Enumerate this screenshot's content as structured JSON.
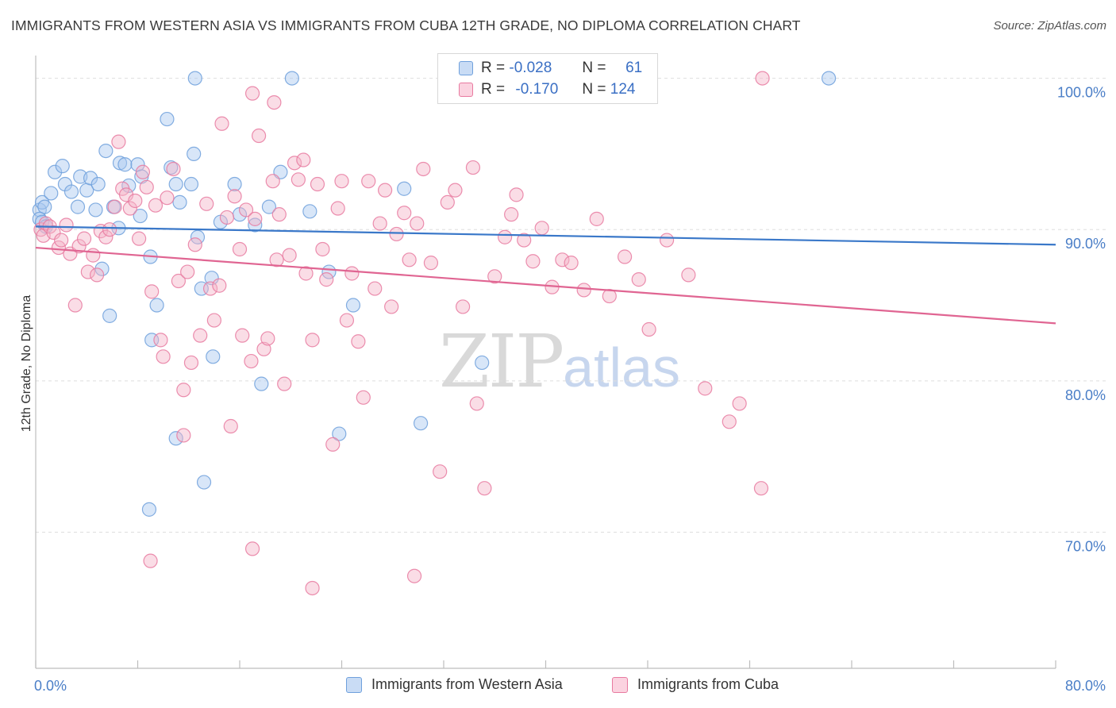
{
  "title": "IMMIGRANTS FROM WESTERN ASIA VS IMMIGRANTS FROM CUBA 12TH GRADE, NO DIPLOMA CORRELATION CHART",
  "source": "Source: ZipAtlas.com",
  "watermark": {
    "zip": "ZIP",
    "atlas": "atlas"
  },
  "legend": {
    "rows": [
      {
        "r_label": "R =",
        "r_value": "-0.028",
        "n_label": "N =",
        "n_value": "61",
        "color": "#a8c8f0"
      },
      {
        "r_label": "R =",
        "r_value": "-0.170",
        "n_label": "N =",
        "n_value": "124",
        "color": "#f5b3c8"
      }
    ]
  },
  "bottom_legend": [
    {
      "label": "Immigrants from Western Asia",
      "color": "#a8c8f0"
    },
    {
      "label": "Immigrants from Cuba",
      "color": "#f5b3c8"
    }
  ],
  "chart_data": {
    "type": "scatter",
    "title": "IMMIGRANTS FROM WESTERN ASIA VS IMMIGRANTS FROM CUBA 12TH GRADE, NO DIPLOMA CORRELATION CHART",
    "xlabel": "",
    "ylabel": "12th Grade, No Diploma",
    "xlim": [
      0,
      80
    ],
    "ylim": [
      61,
      101.5
    ],
    "x_tick_labels": [
      "0.0%",
      "80.0%"
    ],
    "y_ticks": [
      70,
      80,
      90,
      100
    ],
    "y_tick_labels": [
      "70.0%",
      "80.0%",
      "90.0%",
      "100.0%"
    ],
    "grid": true,
    "series": [
      {
        "name": "Immigrants from Western Asia",
        "color": "#6fa0dc",
        "fill": "#a8c8f0",
        "trend": {
          "x": [
            0,
            80
          ],
          "y": [
            90.2,
            89.0
          ]
        },
        "points": [
          [
            0.3,
            91.3
          ],
          [
            0.5,
            91.8
          ],
          [
            0.7,
            91.5
          ],
          [
            0.3,
            90.7
          ],
          [
            0.5,
            90.5
          ],
          [
            0.8,
            90.2
          ],
          [
            1.2,
            92.4
          ],
          [
            1.5,
            93.8
          ],
          [
            2.1,
            94.2
          ],
          [
            2.3,
            93.0
          ],
          [
            2.8,
            92.5
          ],
          [
            3.3,
            91.5
          ],
          [
            3.5,
            93.5
          ],
          [
            4.0,
            92.6
          ],
          [
            4.3,
            93.4
          ],
          [
            4.9,
            93.0
          ],
          [
            4.7,
            91.3
          ],
          [
            5.5,
            95.2
          ],
          [
            6.1,
            91.5
          ],
          [
            6.6,
            94.4
          ],
          [
            7.0,
            94.3
          ],
          [
            7.3,
            92.9
          ],
          [
            8.0,
            94.3
          ],
          [
            8.3,
            93.5
          ],
          [
            8.2,
            90.9
          ],
          [
            9.0,
            88.2
          ],
          [
            9.5,
            85.0
          ],
          [
            10.3,
            97.3
          ],
          [
            10.6,
            94.1
          ],
          [
            11.0,
            93.0
          ],
          [
            11.3,
            91.8
          ],
          [
            12.2,
            93.0
          ],
          [
            12.4,
            95.0
          ],
          [
            12.7,
            89.5
          ],
          [
            13.0,
            86.1
          ],
          [
            13.8,
            86.8
          ],
          [
            14.5,
            90.5
          ],
          [
            15.6,
            93.0
          ],
          [
            16.0,
            91.0
          ],
          [
            17.2,
            90.3
          ],
          [
            18.3,
            91.5
          ],
          [
            19.2,
            93.8
          ],
          [
            20.1,
            100.0
          ],
          [
            21.5,
            91.2
          ],
          [
            23.0,
            87.2
          ],
          [
            24.9,
            85.0
          ],
          [
            28.9,
            92.7
          ],
          [
            30.2,
            77.2
          ],
          [
            35.0,
            81.2
          ],
          [
            5.2,
            87.4
          ],
          [
            5.8,
            84.3
          ],
          [
            9.1,
            82.7
          ],
          [
            11.0,
            76.2
          ],
          [
            13.9,
            81.6
          ],
          [
            17.7,
            79.8
          ],
          [
            13.2,
            73.3
          ],
          [
            8.9,
            71.5
          ],
          [
            12.5,
            100.0
          ],
          [
            42.0,
            100.0
          ],
          [
            62.2,
            100.0
          ],
          [
            23.8,
            76.5
          ],
          [
            6.5,
            90.1
          ]
        ]
      },
      {
        "name": "Immigrants from Cuba",
        "color": "#e87aa0",
        "fill": "#f5b3c8",
        "trend": {
          "x": [
            0,
            80
          ],
          "y": [
            88.8,
            83.8
          ]
        },
        "points": [
          [
            0.4,
            90.0
          ],
          [
            0.6,
            89.6
          ],
          [
            0.8,
            90.4
          ],
          [
            1.1,
            90.2
          ],
          [
            1.4,
            89.8
          ],
          [
            1.8,
            88.8
          ],
          [
            2.0,
            89.3
          ],
          [
            2.4,
            90.3
          ],
          [
            2.7,
            88.4
          ],
          [
            3.1,
            85.0
          ],
          [
            3.4,
            88.9
          ],
          [
            3.8,
            89.4
          ],
          [
            4.1,
            87.2
          ],
          [
            4.5,
            88.3
          ],
          [
            4.8,
            87.0
          ],
          [
            5.1,
            89.9
          ],
          [
            5.5,
            89.5
          ],
          [
            5.8,
            90.0
          ],
          [
            6.2,
            91.5
          ],
          [
            6.5,
            95.8
          ],
          [
            6.8,
            92.7
          ],
          [
            7.1,
            92.3
          ],
          [
            7.4,
            91.4
          ],
          [
            7.8,
            91.9
          ],
          [
            8.1,
            89.4
          ],
          [
            8.4,
            93.8
          ],
          [
            8.7,
            92.8
          ],
          [
            9.1,
            85.9
          ],
          [
            9.4,
            91.6
          ],
          [
            9.8,
            82.7
          ],
          [
            10.0,
            81.6
          ],
          [
            10.3,
            92.1
          ],
          [
            10.8,
            94.0
          ],
          [
            11.2,
            86.6
          ],
          [
            11.6,
            79.4
          ],
          [
            11.9,
            87.2
          ],
          [
            12.2,
            81.2
          ],
          [
            12.5,
            89.0
          ],
          [
            12.9,
            83.0
          ],
          [
            13.4,
            91.7
          ],
          [
            13.7,
            86.1
          ],
          [
            14.0,
            84.0
          ],
          [
            14.4,
            86.3
          ],
          [
            14.6,
            97.0
          ],
          [
            15.0,
            90.8
          ],
          [
            15.3,
            77.0
          ],
          [
            15.6,
            92.2
          ],
          [
            16.0,
            88.7
          ],
          [
            16.2,
            83.0
          ],
          [
            16.5,
            91.3
          ],
          [
            16.9,
            81.3
          ],
          [
            17.2,
            90.7
          ],
          [
            17.5,
            96.2
          ],
          [
            17.9,
            82.1
          ],
          [
            18.2,
            82.8
          ],
          [
            18.6,
            93.2
          ],
          [
            18.9,
            88.0
          ],
          [
            19.1,
            91.0
          ],
          [
            19.5,
            79.8
          ],
          [
            19.9,
            88.3
          ],
          [
            20.3,
            94.4
          ],
          [
            20.6,
            93.3
          ],
          [
            21.0,
            94.6
          ],
          [
            21.2,
            87.1
          ],
          [
            21.7,
            82.7
          ],
          [
            22.1,
            93.0
          ],
          [
            22.5,
            88.7
          ],
          [
            22.8,
            86.7
          ],
          [
            23.3,
            75.8
          ],
          [
            23.7,
            91.4
          ],
          [
            24.0,
            93.2
          ],
          [
            24.4,
            84.0
          ],
          [
            24.8,
            87.1
          ],
          [
            25.3,
            82.6
          ],
          [
            25.7,
            78.9
          ],
          [
            26.1,
            93.2
          ],
          [
            26.6,
            86.1
          ],
          [
            27.0,
            90.4
          ],
          [
            27.4,
            92.6
          ],
          [
            27.9,
            84.9
          ],
          [
            28.3,
            89.7
          ],
          [
            28.9,
            91.1
          ],
          [
            29.3,
            88.0
          ],
          [
            29.9,
            90.4
          ],
          [
            30.4,
            94.0
          ],
          [
            31.0,
            87.8
          ],
          [
            31.7,
            74.0
          ],
          [
            32.3,
            91.8
          ],
          [
            32.9,
            92.6
          ],
          [
            33.5,
            84.9
          ],
          [
            34.3,
            94.1
          ],
          [
            35.2,
            72.9
          ],
          [
            36.0,
            86.9
          ],
          [
            36.8,
            89.5
          ],
          [
            37.3,
            91.0
          ],
          [
            37.7,
            92.3
          ],
          [
            38.3,
            89.3
          ],
          [
            39.0,
            87.9
          ],
          [
            39.7,
            90.1
          ],
          [
            40.5,
            86.2
          ],
          [
            41.3,
            88.0
          ],
          [
            42.0,
            87.8
          ],
          [
            43.0,
            86.0
          ],
          [
            44.0,
            90.7
          ],
          [
            45.0,
            85.6
          ],
          [
            46.2,
            88.2
          ],
          [
            47.3,
            86.7
          ],
          [
            48.1,
            83.4
          ],
          [
            49.5,
            89.3
          ],
          [
            51.2,
            87.0
          ],
          [
            52.5,
            79.5
          ],
          [
            54.4,
            77.3
          ],
          [
            55.2,
            78.5
          ],
          [
            56.9,
            72.9
          ],
          [
            34.6,
            78.5
          ],
          [
            29.7,
            67.1
          ],
          [
            17.0,
            68.9
          ],
          [
            9.0,
            68.1
          ],
          [
            21.7,
            66.3
          ],
          [
            57.0,
            100.0
          ],
          [
            17.0,
            99.0
          ],
          [
            11.6,
            76.4
          ],
          [
            18.7,
            98.4
          ]
        ]
      }
    ]
  }
}
